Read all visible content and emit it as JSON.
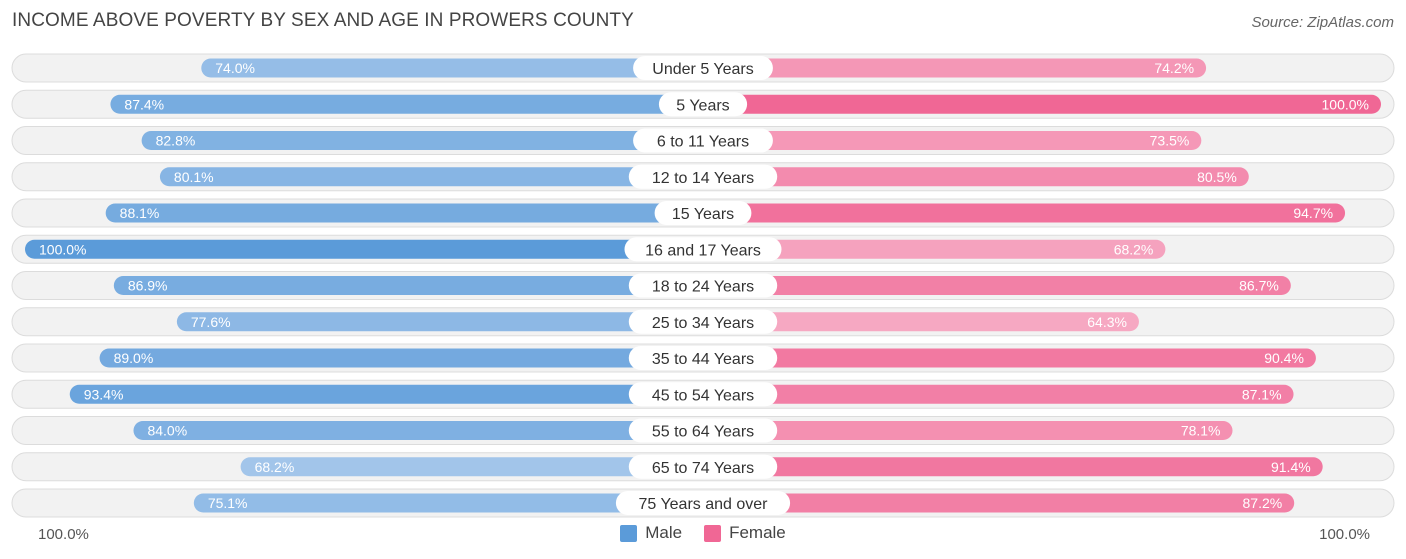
{
  "title": "INCOME ABOVE POVERTY BY SEX AND AGE IN PROWERS COUNTY",
  "source": "Source: ZipAtlas.com",
  "colors": {
    "male_strong": "#5b9bd9",
    "male_light": "#a9c9ec",
    "female_strong": "#f06795",
    "female_light": "#f6a8c2",
    "row_bg": "#f2f2f2",
    "row_border": "#dcdcdc"
  },
  "chart_data": {
    "type": "bar",
    "orientation": "horizontal-diverging",
    "title": "INCOME ABOVE POVERTY BY SEX AND AGE IN PROWERS COUNTY",
    "categories": [
      "Under 5 Years",
      "5 Years",
      "6 to 11 Years",
      "12 to 14 Years",
      "15 Years",
      "16 and 17 Years",
      "18 to 24 Years",
      "25 to 34 Years",
      "35 to 44 Years",
      "45 to 54 Years",
      "55 to 64 Years",
      "65 to 74 Years",
      "75 Years and over"
    ],
    "series": [
      {
        "name": "Male",
        "values": [
          74.0,
          87.4,
          82.8,
          80.1,
          88.1,
          100.0,
          86.9,
          77.6,
          89.0,
          93.4,
          84.0,
          68.2,
          75.1
        ],
        "labels": [
          "74.0%",
          "87.4%",
          "82.8%",
          "80.1%",
          "88.1%",
          "100.0%",
          "86.9%",
          "77.6%",
          "89.0%",
          "93.4%",
          "84.0%",
          "68.2%",
          "75.1%"
        ]
      },
      {
        "name": "Female",
        "values": [
          74.2,
          100.0,
          73.5,
          80.5,
          94.7,
          68.2,
          86.7,
          64.3,
          90.4,
          87.1,
          78.1,
          91.4,
          87.2
        ],
        "labels": [
          "74.2%",
          "100.0%",
          "73.5%",
          "80.5%",
          "94.7%",
          "68.2%",
          "86.7%",
          "64.3%",
          "90.4%",
          "87.1%",
          "78.1%",
          "91.4%",
          "87.2%"
        ]
      }
    ],
    "xlim": [
      0,
      100
    ],
    "axis_left_label": "100.0%",
    "axis_right_label": "100.0%",
    "legend_position": "bottom-center"
  },
  "legend": {
    "male": "Male",
    "female": "Female"
  }
}
